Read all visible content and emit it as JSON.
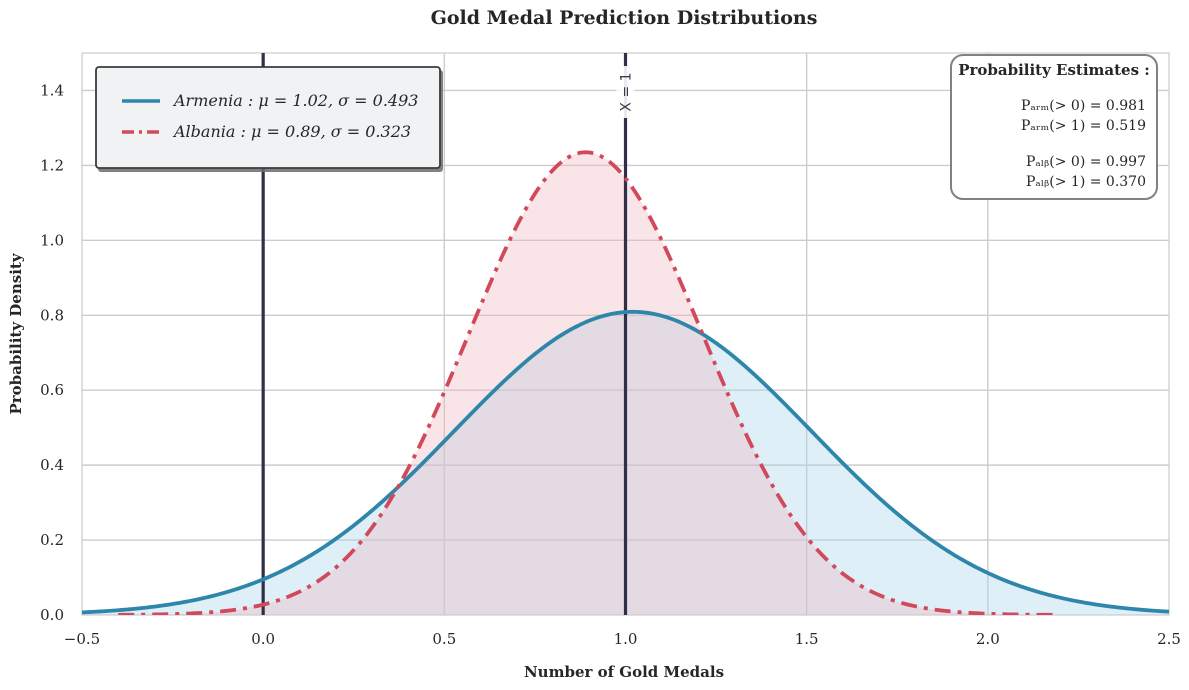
{
  "chart_data": {
    "type": "line",
    "title": "Gold Medal Prediction Distributions",
    "xlabel": "Number of Gold Medals",
    "ylabel": "Probability Density",
    "xlim": [
      -0.5,
      2.5
    ],
    "ylim": [
      0,
      1.5
    ],
    "x_ticks": [
      -0.5,
      0.0,
      0.5,
      1.0,
      1.5,
      2.0,
      2.5
    ],
    "x_tick_labels": [
      "−0.5",
      "0.0",
      "0.5",
      "1.0",
      "1.5",
      "2.0",
      "2.5"
    ],
    "y_ticks": [
      0.0,
      0.2,
      0.4,
      0.6,
      0.8,
      1.0,
      1.2,
      1.4
    ],
    "y_tick_labels": [
      "0.0",
      "0.2",
      "0.4",
      "0.6",
      "0.8",
      "1.0",
      "1.2",
      "1.4"
    ],
    "grid": true,
    "legend_position": "top-left",
    "series": [
      {
        "name": "Armenia",
        "legend_label": "Armenia : μ = 1.02,  σ = 0.493",
        "distribution": "normal",
        "mu": 1.02,
        "sigma": 0.493,
        "x_range": [
          -0.5,
          2.5
        ],
        "color": "#2e86ab",
        "fill": "#a9d6ea",
        "style": "solid"
      },
      {
        "name": "Albania",
        "legend_label": "Albania : μ = 0.89,  σ = 0.323",
        "distribution": "normal",
        "mu": 0.89,
        "sigma": 0.323,
        "x_range": [
          -0.4,
          2.18
        ],
        "color": "#d1495b",
        "fill": "#f0b9c2",
        "style": "dashdot"
      }
    ],
    "vlines": [
      {
        "x": 0,
        "label": "",
        "color": "#2d3047"
      },
      {
        "x": 1,
        "label": "X = 1",
        "color": "#2d3047"
      }
    ],
    "annotation": {
      "title": "Probability Estimates :",
      "lines": [
        "Pₐᵣₘ(> 0) = 0.981",
        "Pₐᵣₘ(> 1) = 0.519",
        "Pₐₗᵦ(> 0) = 0.997",
        "Pₐₗᵦ(> 1) = 0.370"
      ],
      "entries": [
        {
          "country": "ARM",
          "condition": "(> 0)",
          "value": "0.981"
        },
        {
          "country": "ARM",
          "condition": "(> 1)",
          "value": "0.519"
        },
        {
          "country": "ALB",
          "condition": "(> 0)",
          "value": "0.997"
        },
        {
          "country": "ALB",
          "condition": "(> 1)",
          "value": "0.370"
        }
      ],
      "position": "top-right"
    }
  }
}
